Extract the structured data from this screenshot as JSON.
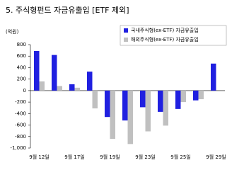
{
  "chart_data": {
    "type": "bar",
    "title": "5. 주식형펀드 자금유출입 [ETF 제외]",
    "y_label": "(억원)",
    "categories": [
      "9월 12일",
      null,
      "9월 17일",
      null,
      "9월 19일",
      null,
      "9월 23일",
      null,
      "9월 25일",
      null,
      "9월 29일"
    ],
    "series": [
      {
        "name": "국내주식형(ex-ETF) 자금유출입",
        "color": "#2020e0",
        "values": [
          690,
          620,
          110,
          330,
          -460,
          -520,
          -290,
          -370,
          -320,
          -170,
          470
        ]
      },
      {
        "name": "해외주식형(ex-ETF) 자금유출입",
        "color": "#c0c0c0",
        "values": [
          160,
          80,
          50,
          -310,
          -840,
          -930,
          -710,
          -610,
          -200,
          -150,
          0
        ]
      }
    ],
    "ylim": [
      -1000,
      800
    ],
    "yticks": [
      {
        "value": -1000,
        "label": "-1,000"
      },
      -800,
      -600,
      -400,
      -200,
      0,
      200,
      400,
      600,
      800
    ],
    "legend": "top-right"
  }
}
